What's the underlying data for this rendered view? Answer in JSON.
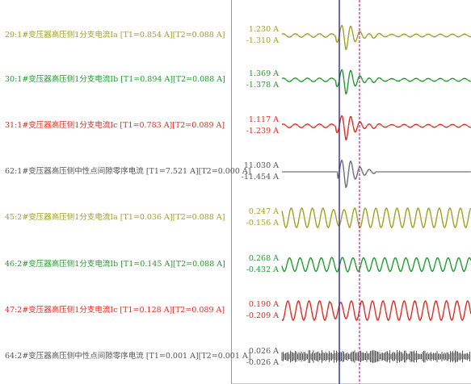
{
  "channels": [
    {
      "label": "29:1#变压器高压侧1分支电流Ia [T1=0.854 A][T2=0.088 A]",
      "max": "1.230 A",
      "min": "-1.310 A",
      "color": "#a0a020",
      "type": "fault",
      "amp": 1.0
    },
    {
      "label": "30:1#变压器高压侧1分支电流Ib [T1=0.894 A][T2=0.088 A]",
      "max": "1.369 A",
      "min": "-1.378 A",
      "color": "#1f9a2c",
      "type": "fault",
      "amp": 1.0
    },
    {
      "label": "31:1#变压器高压侧1分支电流Ic [T1=0.783 A][T2=0.089 A]",
      "max": "1.117 A",
      "min": "-1.239 A",
      "color": "#e02a20",
      "type": "fault",
      "amp": 1.0
    },
    {
      "label": "62:1#变压器高压侧中性点间隙零序电流 [T1=7.521 A][T2=0.000 A]",
      "max": "11.030 A",
      "min": "-11.454 A",
      "color": "#6a6e7a",
      "type": "zero",
      "amp": 1.0
    },
    {
      "label": "45:2#变压器高压侧1分支电流Ia [T1=0.036 A][T2=0.088 A]",
      "max": "0.247 A",
      "min": "-0.156 A",
      "color": "#a0a020",
      "type": "cont",
      "amp": 1.0
    },
    {
      "label": "46:2#变压器高压侧1分支电流Ib [T1=0.145 A][T2=0.088 A]",
      "max": "0.268 A",
      "min": "-0.432 A",
      "color": "#1f9a2c",
      "type": "cont",
      "amp": 0.7
    },
    {
      "label": "47:2#变压器高压侧1分支电流Ic [T1=0.128 A][T2=0.089 A]",
      "max": "0.190 A",
      "min": "-0.209 A",
      "color": "#e02a20",
      "type": "cont",
      "amp": 1.0
    },
    {
      "label": "64:2#变压器高压侧中性点间隙零序电流 [T1=0.001 A][T2=0.001 A]",
      "max": "0.026 A",
      "min": "-0.026 A",
      "color": "#555555",
      "type": "noise",
      "amp": 1.0
    }
  ],
  "cursors": {
    "t1_color": "#2a2a9a",
    "t2_color": "#c0208a"
  }
}
